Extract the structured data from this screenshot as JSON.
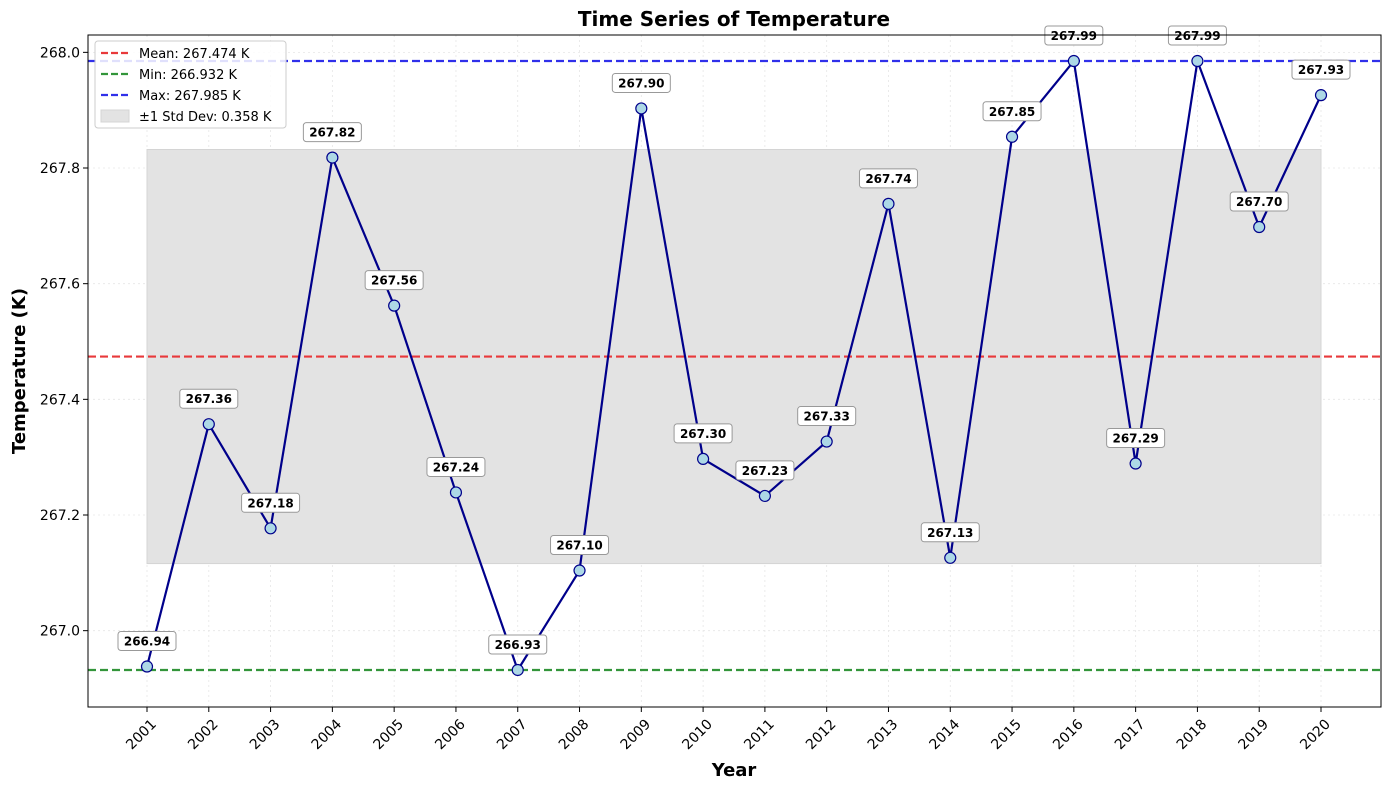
{
  "chart_data": {
    "type": "line",
    "title": "Time Series of Temperature",
    "xlabel": "Year",
    "ylabel": "Temperature (K)",
    "categories": [
      "2001",
      "2002",
      "2003",
      "2004",
      "2005",
      "2006",
      "2007",
      "2008",
      "2009",
      "2010",
      "2011",
      "2012",
      "2013",
      "2014",
      "2015",
      "2016",
      "2017",
      "2018",
      "2019",
      "2020"
    ],
    "values": [
      266.938,
      267.357,
      267.177,
      267.818,
      267.562,
      267.239,
      266.932,
      267.104,
      267.903,
      267.297,
      267.233,
      267.327,
      267.738,
      267.126,
      267.854,
      267.985,
      267.289,
      267.985,
      267.698,
      267.926
    ],
    "data_labels": [
      "266.94",
      "267.36",
      "267.18",
      "267.82",
      "267.56",
      "267.24",
      "266.93",
      "267.10",
      "267.90",
      "267.30",
      "267.23",
      "267.33",
      "267.74",
      "267.13",
      "267.85",
      "267.99",
      "267.29",
      "267.99",
      "267.70",
      "267.93"
    ],
    "ylim": [
      266.868,
      268.03
    ],
    "yticks": [
      267.0,
      267.2,
      267.4,
      267.6,
      267.8,
      268.0
    ],
    "ytick_labels": [
      "267.0",
      "267.2",
      "267.4",
      "267.6",
      "267.8",
      "268.0"
    ],
    "mean": 267.474,
    "min": 266.932,
    "max": 267.985,
    "std": 0.358,
    "grid": true,
    "legend_position": "top-left",
    "legend": [
      {
        "label": "Mean: 267.474 K",
        "kind": "dashed-line",
        "color": "#e8393b"
      },
      {
        "label": "Min: 266.932 K",
        "kind": "dashed-line",
        "color": "#33953a"
      },
      {
        "label": "Max: 267.985 K",
        "kind": "dashed-line",
        "color": "#3030ea"
      },
      {
        "label": "±1 Std Dev: 0.358 K",
        "kind": "band",
        "color": "#e3e3e3"
      }
    ],
    "colors": {
      "line": "#00008b",
      "marker_fill": "#add8e6",
      "mean": "#e8393b",
      "min": "#33953a",
      "max": "#3030ea",
      "band": "#e3e3e3"
    }
  }
}
